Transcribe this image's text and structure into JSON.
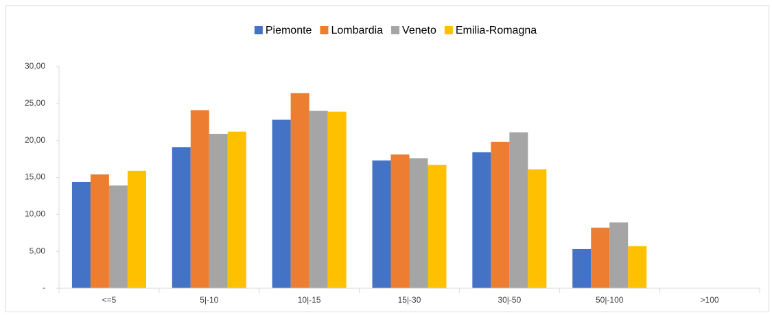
{
  "chart_data": {
    "type": "bar",
    "categories": [
      "<=5",
      "5|-10",
      "10|-15",
      "15|-30",
      "30|-50",
      "50|-100",
      ">100"
    ],
    "series": [
      {
        "name": "Piemonte",
        "color": "#4472c4",
        "values": [
          14.4,
          19.1,
          22.8,
          17.3,
          18.4,
          5.3,
          0
        ]
      },
      {
        "name": "Lombardia",
        "color": "#ed7d31",
        "values": [
          15.4,
          24.1,
          26.4,
          18.1,
          19.8,
          8.2,
          0
        ]
      },
      {
        "name": "Veneto",
        "color": "#a5a5a5",
        "values": [
          13.9,
          20.9,
          24.0,
          17.6,
          21.1,
          8.9,
          0
        ]
      },
      {
        "name": "Emilia-Romagna",
        "color": "#ffc000",
        "values": [
          15.9,
          21.2,
          23.9,
          16.7,
          16.1,
          5.7,
          0
        ]
      }
    ],
    "ylim": [
      0,
      30
    ],
    "yticks": [
      {
        "value": 0,
        "label": "-"
      },
      {
        "value": 5,
        "label": "5,00"
      },
      {
        "value": 10,
        "label": "10,00"
      },
      {
        "value": 15,
        "label": "15,00"
      },
      {
        "value": 20,
        "label": "20,00"
      },
      {
        "value": 25,
        "label": "25,00"
      },
      {
        "value": 30,
        "label": "30,00"
      }
    ],
    "legend": "top",
    "grid": false
  }
}
